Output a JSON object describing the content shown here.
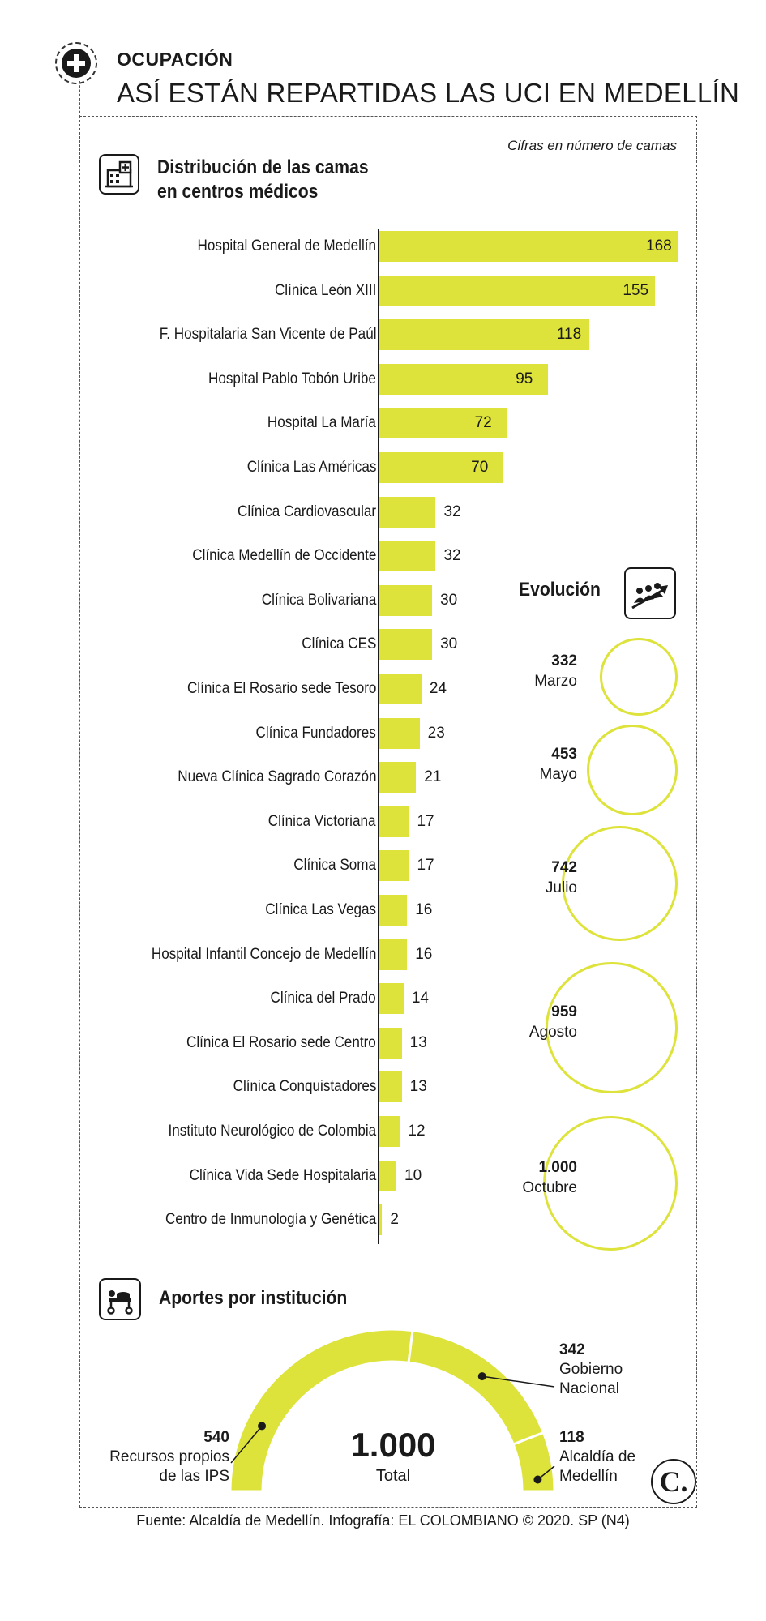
{
  "header": {
    "kicker": "OCUPACIÓN",
    "title": "ASÍ ESTÁN REPARTIDAS LAS UCI EN MEDELLÍN",
    "units_note": "Cifras en número de camas"
  },
  "bar_section": {
    "title_line1": "Distribución de las camas",
    "title_line2": "en centros médicos",
    "icon": "hospital-building-icon"
  },
  "evolution_section": {
    "title": "Evolución",
    "icon": "growth-people-icon"
  },
  "donut_section": {
    "title": "Aportes por institución",
    "icon": "hospital-stretcher-icon",
    "center_value": "1.000",
    "center_label": "Total",
    "items": [
      {
        "value": "540",
        "label_line1": "Recursos propios",
        "label_line2": "de las IPS"
      },
      {
        "value": "342",
        "label_line1": "Gobierno",
        "label_line2": "Nacional"
      },
      {
        "value": "118",
        "label_line1": "Alcaldía de",
        "label_line2": "Medellín"
      }
    ]
  },
  "colors": {
    "accent": "#dde33a",
    "ink": "#1a1a1a"
  },
  "footer": {
    "source": "Fuente: Alcaldía de Medellín. Infografía: EL COLOMBIANO © 2020. SP (N4)",
    "brand_mark": "C."
  },
  "chart_data": [
    {
      "type": "bar",
      "orientation": "horizontal",
      "title": "Distribución de las camas en centros médicos",
      "unit": "Cifras en número de camas",
      "categories": [
        "Hospital General de Medellín",
        "Clínica León XIII",
        "F. Hospitalaria San Vicente de Paúl",
        "Hospital Pablo Tobón Uribe",
        "Hospital La María",
        "Clínica Las Américas",
        "Clínica Cardiovascular",
        "Clínica Medellín de Occidente",
        "Clínica Bolivariana",
        "Clínica CES",
        "Clínica El Rosario sede Tesoro",
        "Clínica Fundadores",
        "Nueva Clínica Sagrado Corazón",
        "Clínica Victoriana",
        "Clínica Soma",
        "Clínica Las Vegas",
        "Hospital Infantil Concejo de Medellín",
        "Clínica del Prado",
        "Clínica El Rosario sede Centro",
        "Clínica Conquistadores",
        "Instituto Neurológico de Colombia",
        "Clínica Vida Sede Hospitalaria",
        "Centro de Inmunología y Genética"
      ],
      "values": [
        168,
        155,
        118,
        95,
        72,
        70,
        32,
        32,
        30,
        30,
        24,
        23,
        21,
        17,
        17,
        16,
        16,
        14,
        13,
        13,
        12,
        10,
        2
      ],
      "xlim": [
        0,
        168
      ],
      "grid": false
    },
    {
      "type": "bubble",
      "title": "Evolución",
      "categories": [
        "Marzo",
        "Mayo",
        "Julio",
        "Agosto",
        "Octubre"
      ],
      "values": [
        332,
        453,
        742,
        959,
        1000
      ],
      "value_labels": [
        "332",
        "453",
        "742",
        "959",
        "1.000"
      ]
    },
    {
      "type": "pie",
      "style": "half-donut",
      "title": "Aportes por institución",
      "categories": [
        "Recursos propios de las IPS",
        "Gobierno Nacional",
        "Alcaldía de Medellín"
      ],
      "values": [
        540,
        342,
        118
      ],
      "total": 1000
    }
  ]
}
